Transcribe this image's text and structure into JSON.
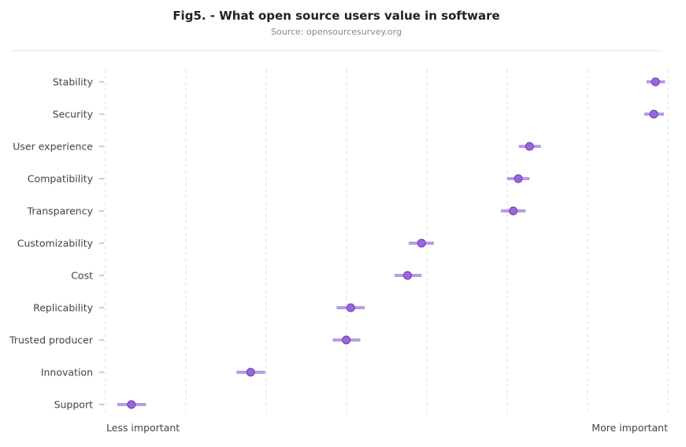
{
  "title": "Fig5. - What open source users value in software",
  "subtitle": "Source: opensourcesurvey.org",
  "colors": {
    "point": "#9966dd",
    "point_stroke": "#6a3fb0",
    "interval": "#b89be8",
    "grid": "#dddddd",
    "text": "#444444"
  },
  "chart_data": {
    "type": "scatter",
    "title": "Fig5. - What open source users value in software",
    "subtitle": "Source: opensourcesurvey.org",
    "x_axis_labels": {
      "low": "Less important",
      "high": "More important"
    },
    "xlim": [
      0,
      1
    ],
    "grid": "vertical dashed",
    "categories": [
      "Stability",
      "Security",
      "User experience",
      "Compatibility",
      "Transparency",
      "Customizability",
      "Cost",
      "Replicability",
      "Trusted producer",
      "Innovation",
      "Support"
    ],
    "values": [
      0.978,
      0.975,
      0.754,
      0.734,
      0.725,
      0.562,
      0.537,
      0.436,
      0.428,
      0.258,
      0.046
    ],
    "intervals": [
      [
        0.962,
        0.995
      ],
      [
        0.958,
        0.993
      ],
      [
        0.735,
        0.774
      ],
      [
        0.714,
        0.754
      ],
      [
        0.703,
        0.747
      ],
      [
        0.539,
        0.584
      ],
      [
        0.514,
        0.562
      ],
      [
        0.411,
        0.461
      ],
      [
        0.404,
        0.453
      ],
      [
        0.233,
        0.284
      ],
      [
        0.021,
        0.072
      ]
    ]
  }
}
